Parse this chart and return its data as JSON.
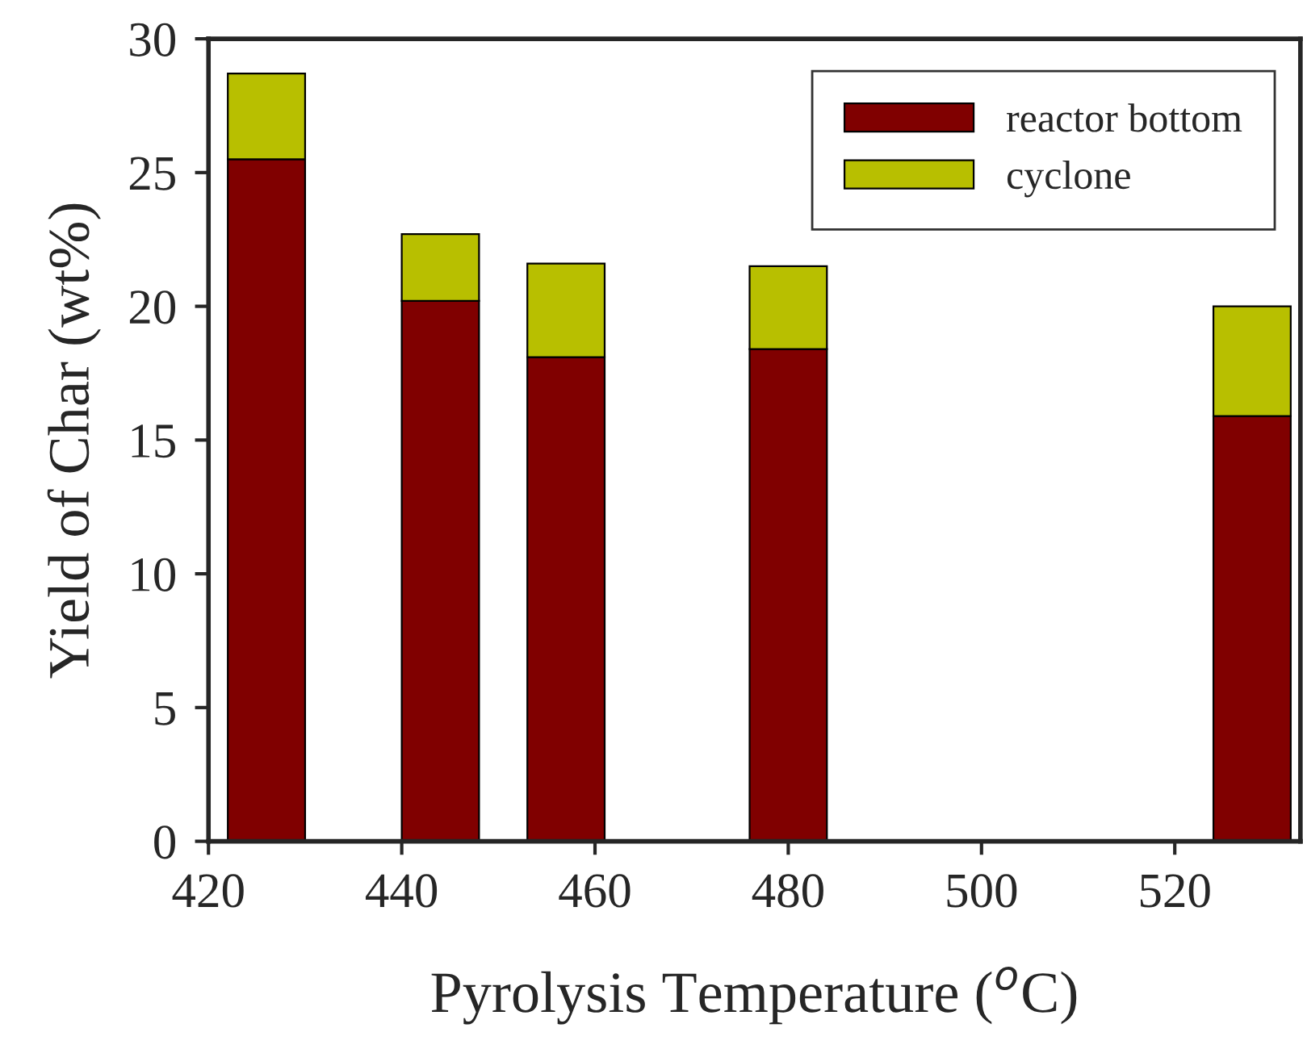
{
  "chart_data": {
    "type": "bar",
    "stacked": true,
    "xlabel": "Pyrolysis Temperature ($^{o}$C)",
    "ylabel": "Yield of Char (wt%)",
    "x": [
      426,
      444,
      457,
      480,
      528
    ],
    "series": [
      {
        "name": "reactor bottom",
        "color": "#800000",
        "values": [
          25.5,
          20.2,
          18.1,
          18.4,
          15.9
        ]
      },
      {
        "name": "cyclone",
        "color": "#b8bf00",
        "values": [
          3.2,
          2.5,
          3.5,
          3.1,
          4.1
        ]
      }
    ],
    "xlim": [
      420,
      533
    ],
    "xticks": [
      420,
      440,
      460,
      480,
      500,
      520
    ],
    "ylim": [
      0,
      30
    ],
    "yticks": [
      0,
      5,
      10,
      15,
      20,
      25,
      30
    ],
    "legend": "top right",
    "grid": false
  }
}
